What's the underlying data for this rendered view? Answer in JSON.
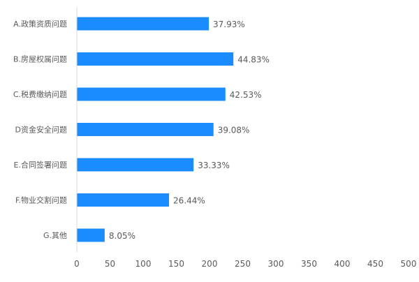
{
  "chart_data": {
    "type": "bar",
    "orientation": "horizontal",
    "categories": [
      "A.政策资质问题",
      "B.房屋权属问题",
      "C.税费缴纳问题",
      "D资金安全问题",
      "E.合同签署问题",
      "F.物业交割问题",
      "G.其他"
    ],
    "values": [
      199,
      236,
      224,
      206,
      176,
      139,
      42
    ],
    "value_labels": [
      "37.93%",
      "44.83%",
      "42.53%",
      "39.08%",
      "33.33%",
      "26.44%",
      "8.05%"
    ],
    "xlim": [
      0,
      500
    ],
    "xticks": [
      0,
      50,
      100,
      150,
      200,
      250,
      300,
      350,
      400,
      450,
      500
    ],
    "grid": false,
    "legend": "none",
    "title": "",
    "xlabel": "",
    "ylabel": "",
    "colors": {
      "bar": "#1a8cff",
      "axis": "#d9d9d9",
      "text": "#595959"
    }
  }
}
